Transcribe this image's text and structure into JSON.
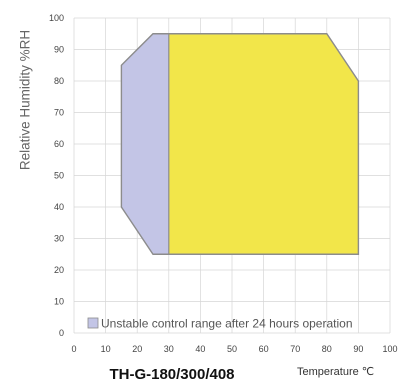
{
  "chart_data": {
    "type": "area",
    "title": "TH-G-180/300/408",
    "xlabel": "Temperature ℃",
    "ylabel": "Relative Humidity %RH",
    "xlim": [
      0,
      100
    ],
    "ylim": [
      0,
      100
    ],
    "x_ticks": [
      "0",
      "10",
      "20",
      "30",
      "40",
      "50",
      "60",
      "70",
      "80",
      "90",
      "100"
    ],
    "y_ticks": [
      "0",
      "10",
      "20",
      "30",
      "40",
      "50",
      "60",
      "70",
      "80",
      "90",
      "100"
    ],
    "grid": true,
    "legend_position": "bottom",
    "series": [
      {
        "name": "Unstable control range after 24 hours operation",
        "color": "#c3c5e6",
        "points": [
          [
            30,
            25
          ],
          [
            25,
            25
          ],
          [
            15,
            40
          ],
          [
            15,
            85
          ],
          [
            25,
            95
          ],
          [
            30,
            95
          ]
        ]
      },
      {
        "name": "",
        "color": "#f2e64a",
        "points": [
          [
            30,
            25
          ],
          [
            90,
            25
          ],
          [
            90,
            80
          ],
          [
            80,
            95
          ],
          [
            30,
            95
          ]
        ]
      }
    ],
    "outline_color": "#8c8c8c"
  }
}
